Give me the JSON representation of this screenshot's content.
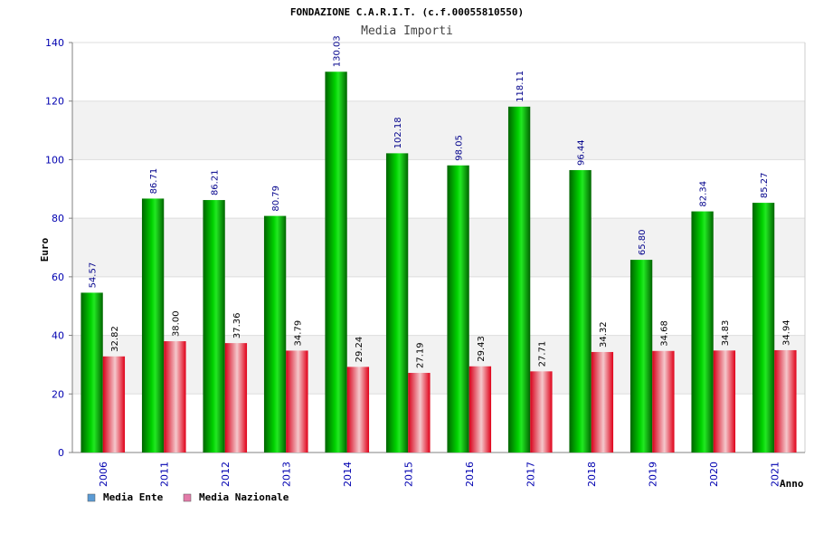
{
  "chart_data": {
    "type": "bar",
    "title": "FONDAZIONE C.A.R.I.T. (c.f.00055810550)",
    "subtitle": "Media Importi",
    "ylabel": "Euro",
    "xlabel": "Anno",
    "ylim": [
      0,
      140
    ],
    "yticks": [
      0,
      20,
      40,
      60,
      80,
      100,
      120,
      140
    ],
    "grid": true,
    "legend_position": "bottom-left",
    "categories": [
      "2006",
      "2011",
      "2012",
      "2013",
      "2014",
      "2015",
      "2016",
      "2017",
      "2018",
      "2019",
      "2020",
      "2021"
    ],
    "series": [
      {
        "name": "Media Ente",
        "values": [
          54.57,
          86.71,
          86.21,
          80.79,
          130.03,
          102.18,
          98.05,
          118.11,
          96.44,
          65.8,
          82.34,
          85.27
        ],
        "labels": [
          "54.57",
          "86.71",
          "86.21",
          "80.79",
          "130.03",
          "102.18",
          "98.05",
          "118.11",
          "96.44",
          "65.80",
          "82.34",
          "85.27"
        ],
        "color": "#00b000",
        "legend_color": "#5b9bd5"
      },
      {
        "name": "Media Nazionale",
        "values": [
          32.82,
          38.0,
          37.36,
          34.79,
          29.24,
          27.19,
          29.43,
          27.71,
          34.32,
          34.68,
          34.83,
          34.94
        ],
        "labels": [
          "32.82",
          "38.00",
          "37.36",
          "34.79",
          "29.24",
          "27.19",
          "29.43",
          "27.71",
          "34.32",
          "34.68",
          "34.83",
          "34.94"
        ],
        "color": "#e8001c",
        "legend_color": "#e37ba9"
      }
    ]
  }
}
